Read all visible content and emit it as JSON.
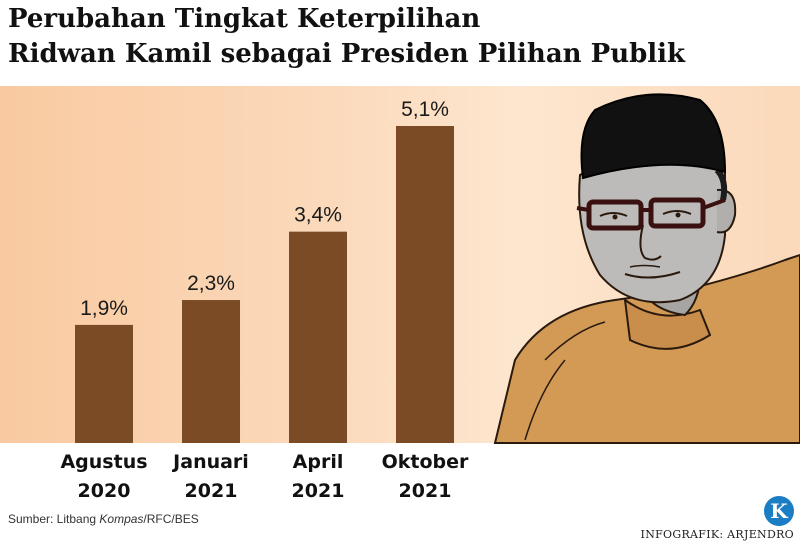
{
  "header": {
    "title_line1": "Perubahan Tingkat Keterpilihan",
    "title_line2": "Ridwan Kamil sebagai Presiden Pilihan Publik"
  },
  "chart_data": {
    "type": "bar",
    "categories": [
      [
        "Agustus",
        "2020"
      ],
      [
        "Januari",
        "2021"
      ],
      [
        "April",
        "2021"
      ],
      [
        "Oktober",
        "2021"
      ]
    ],
    "values": [
      1.9,
      2.3,
      3.4,
      5.1
    ],
    "value_labels": [
      "1,9%",
      "2,3%",
      "3,4%",
      "5,1%"
    ],
    "unit": "%",
    "ylim": [
      0,
      5.1
    ],
    "grid": false,
    "bar_color": "#7a4b24",
    "background_color": "#fbd9ba"
  },
  "footer": {
    "source_prefix": "Sumber: Litbang ",
    "source_italic": "Kompas",
    "source_suffix": "/RFC/BES",
    "credit": "INFOGRAFIK: ARJENDRO",
    "logo_letter": "K"
  },
  "illustration": {
    "subject": "portrait-illustration"
  }
}
